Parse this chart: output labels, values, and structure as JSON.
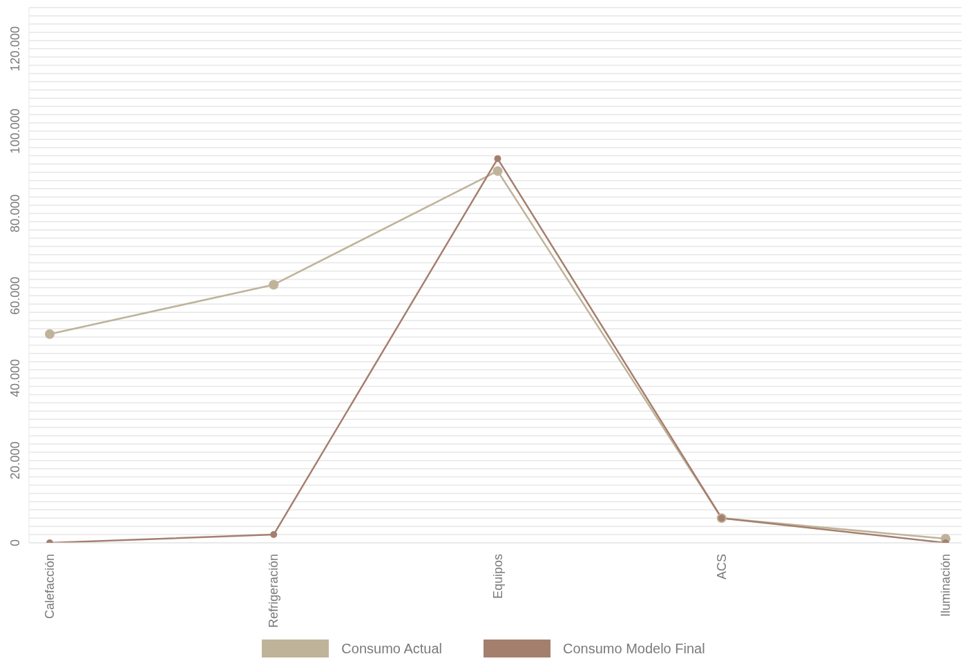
{
  "chart_data": {
    "type": "line",
    "categories": [
      "Calefacción",
      "Refrigeración",
      "Equipos",
      "ACS",
      "Iluminación"
    ],
    "series": [
      {
        "name": "Consumo Actual",
        "color": "#bfb39a",
        "values": [
          50700,
          62700,
          90300,
          6000,
          1000
        ]
      },
      {
        "name": "Consumo Modelo Final",
        "color": "#a57f6e",
        "values": [
          0,
          2000,
          93300,
          6000,
          0
        ]
      }
    ],
    "ylim": [
      0,
      130000
    ],
    "yticks": [
      0,
      {
        "value": 2000,
        "label": null
      },
      {
        "value": 4000,
        "label": null
      },
      {
        "value": 6000,
        "label": null
      },
      {
        "value": 8000,
        "label": null
      },
      {
        "value": 10000,
        "label": null
      },
      {
        "value": 12000,
        "label": null
      },
      {
        "value": 14000,
        "label": null
      },
      {
        "value": 16000,
        "label": null
      },
      {
        "value": 18000,
        "label": null
      },
      {
        "value": 20000,
        "label": "20.000"
      },
      {
        "value": 22000,
        "label": null
      },
      {
        "value": 24000,
        "label": null
      },
      {
        "value": 26000,
        "label": null
      },
      {
        "value": 28000,
        "label": null
      },
      {
        "value": 30000,
        "label": null
      },
      {
        "value": 32000,
        "label": null
      },
      {
        "value": 34000,
        "label": null
      },
      {
        "value": 36000,
        "label": null
      },
      {
        "value": 38000,
        "label": null
      },
      {
        "value": 40000,
        "label": "40.000"
      },
      {
        "value": 42000,
        "label": null
      },
      {
        "value": 44000,
        "label": null
      },
      {
        "value": 46000,
        "label": null
      },
      {
        "value": 48000,
        "label": null
      },
      {
        "value": 50000,
        "label": null
      },
      {
        "value": 52000,
        "label": null
      },
      {
        "value": 54000,
        "label": null
      },
      {
        "value": 56000,
        "label": null
      },
      {
        "value": 58000,
        "label": null
      },
      {
        "value": 60000,
        "label": "60.000"
      },
      {
        "value": 62000,
        "label": null
      },
      {
        "value": 64000,
        "label": null
      },
      {
        "value": 66000,
        "label": null
      },
      {
        "value": 68000,
        "label": null
      },
      {
        "value": 70000,
        "label": null
      },
      {
        "value": 72000,
        "label": null
      },
      {
        "value": 74000,
        "label": null
      },
      {
        "value": 76000,
        "label": null
      },
      {
        "value": 78000,
        "label": null
      },
      {
        "value": 80000,
        "label": "80.000"
      },
      {
        "value": 82000,
        "label": null
      },
      {
        "value": 84000,
        "label": null
      },
      {
        "value": 86000,
        "label": null
      },
      {
        "value": 88000,
        "label": null
      },
      {
        "value": 90000,
        "label": null
      },
      {
        "value": 92000,
        "label": null
      },
      {
        "value": 94000,
        "label": null
      },
      {
        "value": 96000,
        "label": null
      },
      {
        "value": 98000,
        "label": null
      },
      {
        "value": 100000,
        "label": "100.000"
      },
      {
        "value": 102000,
        "label": null
      },
      {
        "value": 104000,
        "label": null
      },
      {
        "value": 106000,
        "label": null
      },
      {
        "value": 108000,
        "label": null
      },
      {
        "value": 110000,
        "label": null
      },
      {
        "value": 112000,
        "label": null
      },
      {
        "value": 114000,
        "label": null
      },
      {
        "value": 116000,
        "label": null
      },
      {
        "value": 118000,
        "label": null
      },
      {
        "value": 120000,
        "label": "120.000"
      },
      {
        "value": 122000,
        "label": null
      },
      {
        "value": 124000,
        "label": null
      },
      {
        "value": 126000,
        "label": null
      },
      {
        "value": 128000,
        "label": null
      }
    ],
    "grid": "y",
    "legend": "bottom",
    "marker": "circle",
    "line_style": "solid"
  }
}
